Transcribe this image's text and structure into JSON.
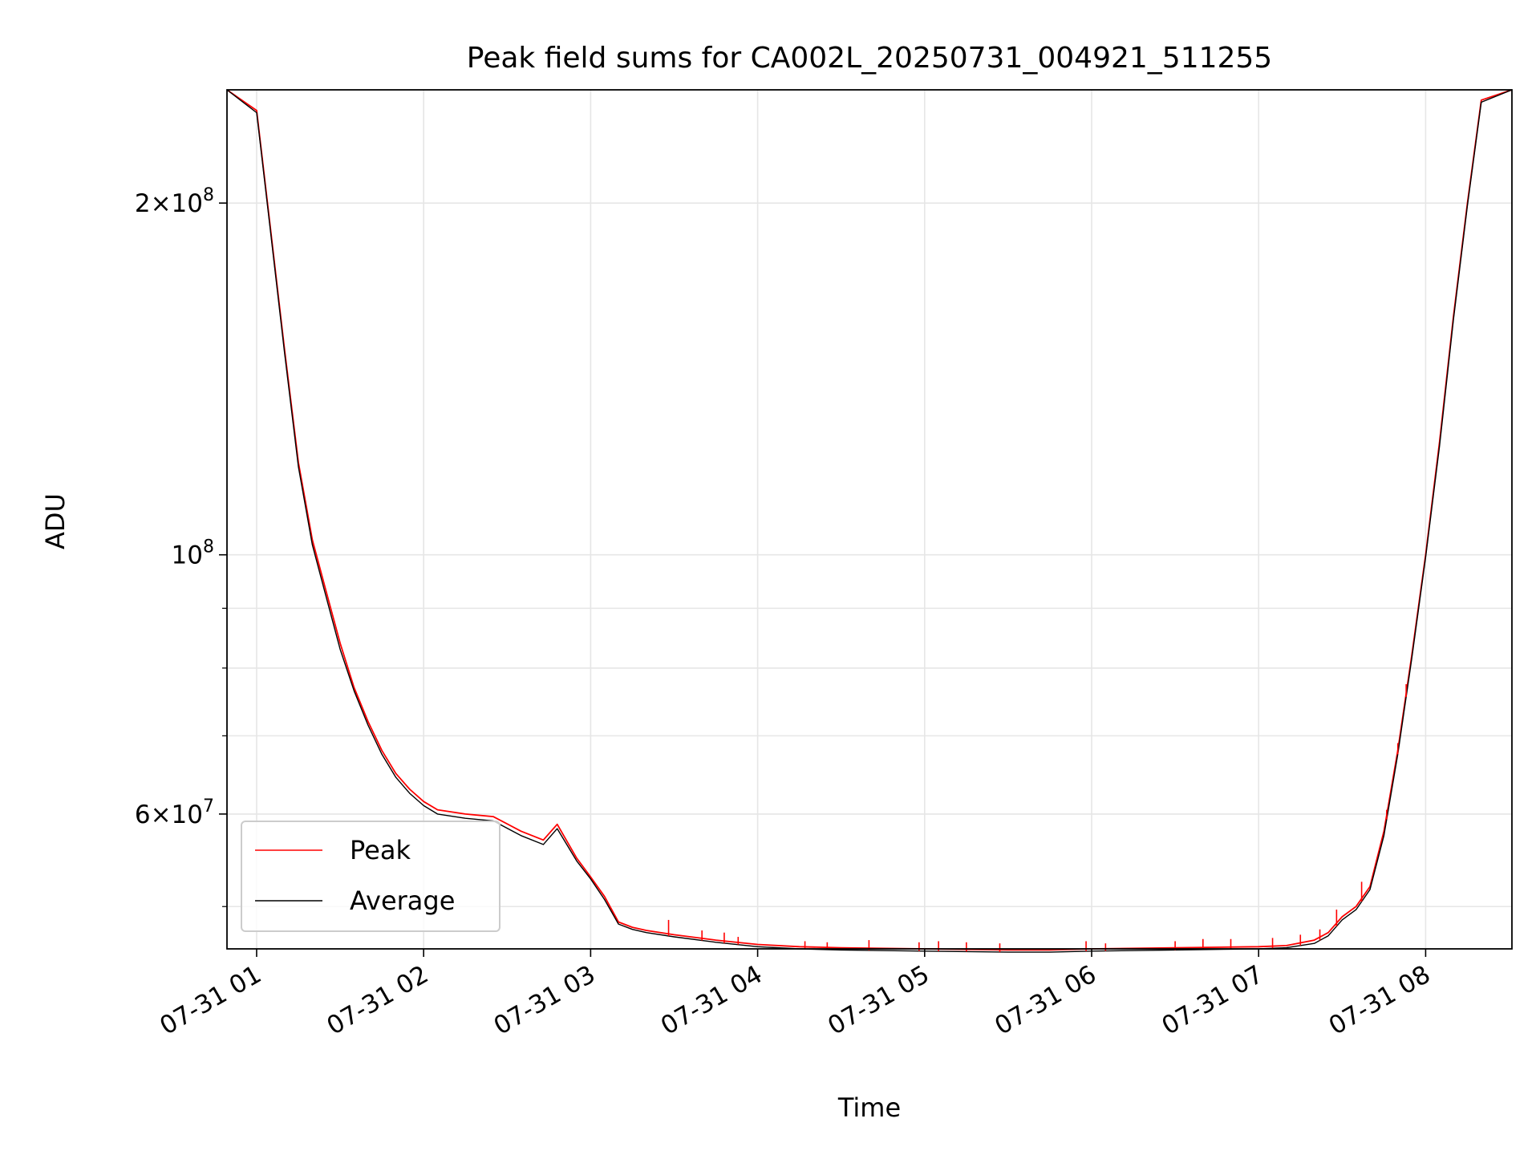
{
  "chart_data": {
    "type": "line",
    "title": "Peak field sums for CA002L_20250731_004921_511255",
    "xlabel": "Time",
    "ylabel": "ADU",
    "y_scale": "log",
    "ylim": [
      46000000,
      250000000
    ],
    "xlim": [
      "2025-07-31T00:49:21",
      "2025-07-31T08:31:00"
    ],
    "grid": true,
    "legend_position": "lower-left",
    "x_ticks": [
      {
        "t": "2025-07-31T01:00",
        "label": "07-31 01"
      },
      {
        "t": "2025-07-31T02:00",
        "label": "07-31 02"
      },
      {
        "t": "2025-07-31T03:00",
        "label": "07-31 03"
      },
      {
        "t": "2025-07-31T04:00",
        "label": "07-31 04"
      },
      {
        "t": "2025-07-31T05:00",
        "label": "07-31 05"
      },
      {
        "t": "2025-07-31T06:00",
        "label": "07-31 06"
      },
      {
        "t": "2025-07-31T07:00",
        "label": "07-31 07"
      },
      {
        "t": "2025-07-31T08:00",
        "label": "07-31 08"
      }
    ],
    "y_major_ticks": [
      {
        "value": 60000000,
        "mantissa": "6",
        "exponent": "7"
      },
      {
        "value": 100000000,
        "mantissa": "",
        "exponent": "8"
      },
      {
        "value": 200000000,
        "mantissa": "2",
        "exponent": "8"
      }
    ],
    "y_minor_ticks": [
      50000000,
      70000000,
      80000000,
      90000000
    ],
    "series": [
      {
        "name": "Peak",
        "color": "#ff0000",
        "x": [
          "2025-07-31T00:49:21",
          "2025-07-31T01:00",
          "2025-07-31T01:05",
          "2025-07-31T01:10",
          "2025-07-31T01:15",
          "2025-07-31T01:20",
          "2025-07-31T01:25",
          "2025-07-31T01:30",
          "2025-07-31T01:35",
          "2025-07-31T01:40",
          "2025-07-31T01:45",
          "2025-07-31T01:50",
          "2025-07-31T01:55",
          "2025-07-31T02:00",
          "2025-07-31T02:05",
          "2025-07-31T02:15",
          "2025-07-31T02:25",
          "2025-07-31T02:35",
          "2025-07-31T02:43",
          "2025-07-31T02:48",
          "2025-07-31T02:55",
          "2025-07-31T03:00",
          "2025-07-31T03:05",
          "2025-07-31T03:10",
          "2025-07-31T03:15",
          "2025-07-31T03:20",
          "2025-07-31T03:30",
          "2025-07-31T03:45",
          "2025-07-31T04:00",
          "2025-07-31T04:15",
          "2025-07-31T04:30",
          "2025-07-31T05:00",
          "2025-07-31T05:30",
          "2025-07-31T05:45",
          "2025-07-31T06:00",
          "2025-07-31T06:30",
          "2025-07-31T07:00",
          "2025-07-31T07:10",
          "2025-07-31T07:20",
          "2025-07-31T07:25",
          "2025-07-31T07:30",
          "2025-07-31T07:35",
          "2025-07-31T07:40",
          "2025-07-31T07:45",
          "2025-07-31T07:50",
          "2025-07-31T07:55",
          "2025-07-31T08:00",
          "2025-07-31T08:05",
          "2025-07-31T08:10",
          "2025-07-31T08:15",
          "2025-07-31T08:20",
          "2025-07-31T08:31"
        ],
        "y": [
          250000000,
          240000000,
          190000000,
          150000000,
          120000000,
          103000000,
          93000000,
          84000000,
          77000000,
          72000000,
          68000000,
          65000000,
          63000000,
          61500000,
          60500000,
          60000000,
          59700000,
          58000000,
          57000000,
          58800000,
          55000000,
          53000000,
          51000000,
          48500000,
          48000000,
          47700000,
          47300000,
          46800000,
          46400000,
          46200000,
          46100000,
          46000000,
          45900000,
          45900000,
          46000000,
          46100000,
          46200000,
          46300000,
          46800000,
          47500000,
          49000000,
          50000000,
          52000000,
          58000000,
          68000000,
          82000000,
          100000000,
          125000000,
          160000000,
          200000000,
          245000000,
          250000000
        ]
      },
      {
        "name": "Average",
        "color": "#000000",
        "x": [
          "2025-07-31T00:49:21",
          "2025-07-31T01:00",
          "2025-07-31T01:05",
          "2025-07-31T01:10",
          "2025-07-31T01:15",
          "2025-07-31T01:20",
          "2025-07-31T01:25",
          "2025-07-31T01:30",
          "2025-07-31T01:35",
          "2025-07-31T01:40",
          "2025-07-31T01:45",
          "2025-07-31T01:50",
          "2025-07-31T01:55",
          "2025-07-31T02:00",
          "2025-07-31T02:05",
          "2025-07-31T02:15",
          "2025-07-31T02:25",
          "2025-07-31T02:35",
          "2025-07-31T02:43",
          "2025-07-31T02:48",
          "2025-07-31T02:55",
          "2025-07-31T03:00",
          "2025-07-31T03:05",
          "2025-07-31T03:10",
          "2025-07-31T03:15",
          "2025-07-31T03:20",
          "2025-07-31T03:30",
          "2025-07-31T03:45",
          "2025-07-31T04:00",
          "2025-07-31T04:15",
          "2025-07-31T04:30",
          "2025-07-31T05:00",
          "2025-07-31T05:30",
          "2025-07-31T05:45",
          "2025-07-31T06:00",
          "2025-07-31T06:30",
          "2025-07-31T07:00",
          "2025-07-31T07:10",
          "2025-07-31T07:20",
          "2025-07-31T07:25",
          "2025-07-31T07:30",
          "2025-07-31T07:35",
          "2025-07-31T07:40",
          "2025-07-31T07:45",
          "2025-07-31T07:50",
          "2025-07-31T07:55",
          "2025-07-31T08:00",
          "2025-07-31T08:05",
          "2025-07-31T08:10",
          "2025-07-31T08:15",
          "2025-07-31T08:20",
          "2025-07-31T08:31"
        ],
        "y": [
          250000000,
          239000000,
          189000000,
          149000000,
          119000000,
          102000000,
          92000000,
          83000000,
          76500000,
          71500000,
          67500000,
          64500000,
          62500000,
          61000000,
          60000000,
          59500000,
          59200000,
          57500000,
          56500000,
          58300000,
          54700000,
          52800000,
          50700000,
          48300000,
          47800000,
          47500000,
          47100000,
          46600000,
          46200000,
          46000000,
          45900000,
          45800000,
          45700000,
          45700000,
          45800000,
          45900000,
          46000000,
          46100000,
          46500000,
          47200000,
          48700000,
          49700000,
          51700000,
          57500000,
          67500000,
          81500000,
          99500000,
          124000000,
          159000000,
          199000000,
          244000000,
          250000000
        ]
      }
    ],
    "peak_spikes": [
      {
        "x": "2025-07-31T03:28",
        "y": 48700000
      },
      {
        "x": "2025-07-31T03:40",
        "y": 47700000
      },
      {
        "x": "2025-07-31T03:48",
        "y": 47500000
      },
      {
        "x": "2025-07-31T03:53",
        "y": 47100000
      },
      {
        "x": "2025-07-31T04:17",
        "y": 46700000
      },
      {
        "x": "2025-07-31T04:25",
        "y": 46600000
      },
      {
        "x": "2025-07-31T04:40",
        "y": 46800000
      },
      {
        "x": "2025-07-31T04:58",
        "y": 46600000
      },
      {
        "x": "2025-07-31T05:05",
        "y": 46700000
      },
      {
        "x": "2025-07-31T05:15",
        "y": 46600000
      },
      {
        "x": "2025-07-31T05:27",
        "y": 46500000
      },
      {
        "x": "2025-07-31T05:58",
        "y": 46700000
      },
      {
        "x": "2025-07-31T06:05",
        "y": 46500000
      },
      {
        "x": "2025-07-31T06:30",
        "y": 46700000
      },
      {
        "x": "2025-07-31T06:40",
        "y": 46900000
      },
      {
        "x": "2025-07-31T06:50",
        "y": 46900000
      },
      {
        "x": "2025-07-31T07:05",
        "y": 47000000
      },
      {
        "x": "2025-07-31T07:15",
        "y": 47300000
      },
      {
        "x": "2025-07-31T07:22",
        "y": 47800000
      },
      {
        "x": "2025-07-31T07:28",
        "y": 49700000
      },
      {
        "x": "2025-07-31T07:37",
        "y": 52500000
      },
      {
        "x": "2025-07-31T07:46",
        "y": 60500000
      },
      {
        "x": "2025-07-31T07:50",
        "y": 69000000
      },
      {
        "x": "2025-07-31T07:53",
        "y": 77500000
      }
    ]
  }
}
